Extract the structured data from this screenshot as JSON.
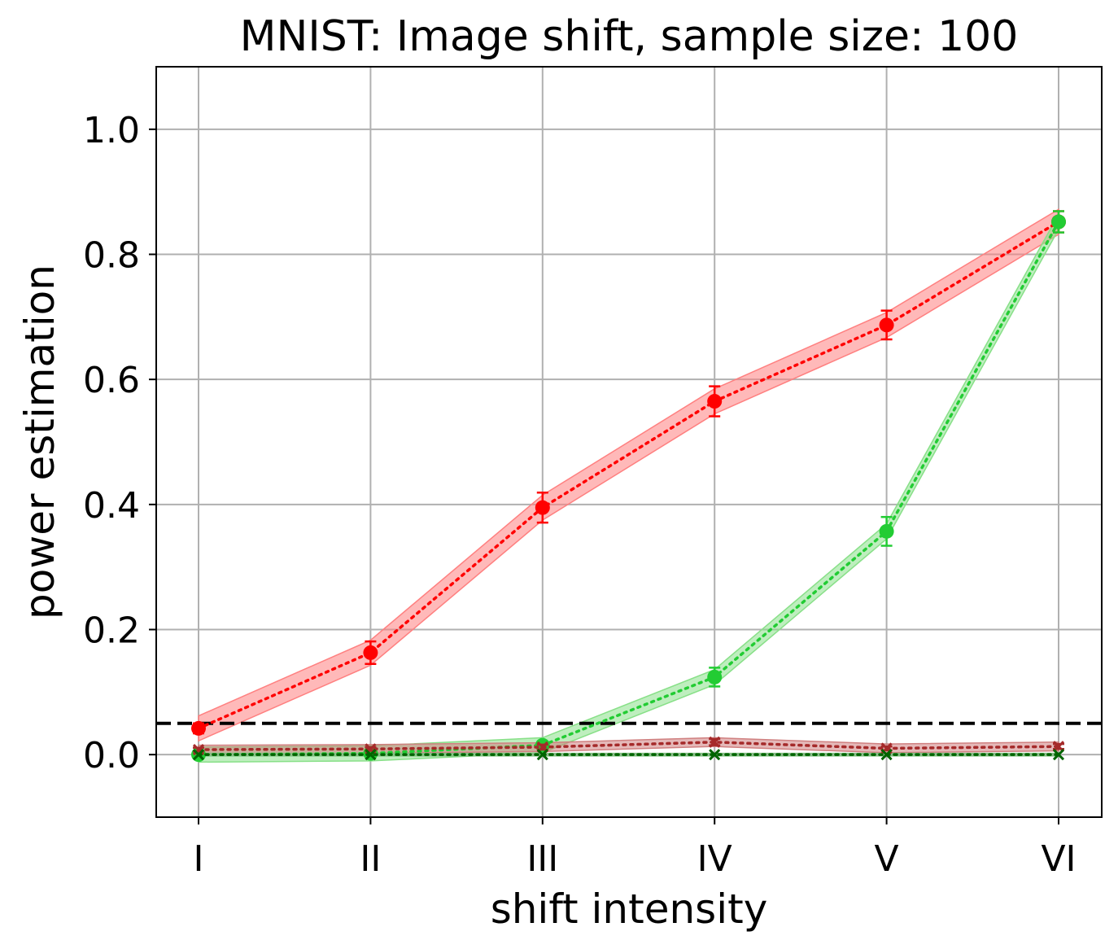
{
  "chart_data": {
    "type": "line",
    "title": "MNIST: Image shift, sample size: 100",
    "xlabel": "shift intensity",
    "ylabel": "power estimation",
    "categories": [
      "I",
      "II",
      "III",
      "IV",
      "V",
      "VI"
    ],
    "ylim": [
      -0.1,
      1.1
    ],
    "yticks": [
      "0.0",
      "0.2",
      "0.4",
      "0.6",
      "0.8",
      "1.0"
    ],
    "grid": true,
    "threshold": 0.05,
    "series": [
      {
        "values": [
          0.042,
          0.163,
          0.395,
          0.565,
          0.687,
          0.852
        ],
        "err": [
          0.008,
          0.018,
          0.024,
          0.024,
          0.023,
          0.017
        ],
        "band": 0.02,
        "color": "#ff0000",
        "band_color": "#ff8080",
        "marker": "circle"
      },
      {
        "values": [
          0.0,
          0.002,
          0.015,
          0.124,
          0.357,
          0.852
        ],
        "err": [
          0.002,
          0.003,
          0.005,
          0.015,
          0.023,
          0.017
        ],
        "band": 0.012,
        "color": "#22cc33",
        "band_color": "#88e088",
        "marker": "circle"
      },
      {
        "values": [
          0.008,
          0.009,
          0.012,
          0.02,
          0.01,
          0.013
        ],
        "err": [
          0.003,
          0.003,
          0.004,
          0.005,
          0.003,
          0.004
        ],
        "band": 0.007,
        "color": "#a52a2a",
        "band_color": "#d08080",
        "marker": "x"
      },
      {
        "values": [
          0.0,
          0.0,
          0.0,
          0.0,
          0.0,
          0.0
        ],
        "err": [
          0,
          0,
          0,
          0,
          0,
          0
        ],
        "band": 0.002,
        "color": "#006400",
        "band_color": "#80c080",
        "marker": "x"
      }
    ]
  }
}
